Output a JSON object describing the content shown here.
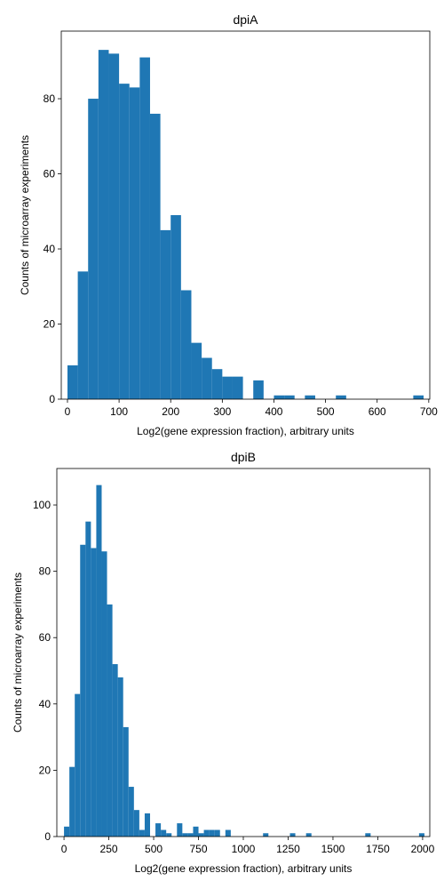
{
  "chart_data": [
    {
      "type": "bar",
      "title": "dpiA",
      "xlabel": "Log2(gene expression fraction), arbitrary units",
      "ylabel": "Counts of microarray experiments",
      "xlim": [
        -12,
        702
      ],
      "ylim": [
        0,
        98
      ],
      "xticks": [
        0,
        100,
        200,
        300,
        400,
        500,
        600,
        700
      ],
      "yticks": [
        0,
        20,
        40,
        60,
        80
      ],
      "bar_color": "#1f77b4",
      "grid": false,
      "bins": [
        {
          "x0": 0,
          "x1": 20,
          "count": 9
        },
        {
          "x0": 20,
          "x1": 40,
          "count": 34
        },
        {
          "x0": 40,
          "x1": 60,
          "count": 80
        },
        {
          "x0": 60,
          "x1": 80,
          "count": 93
        },
        {
          "x0": 80,
          "x1": 100,
          "count": 92
        },
        {
          "x0": 100,
          "x1": 120,
          "count": 84
        },
        {
          "x0": 120,
          "x1": 140,
          "count": 83
        },
        {
          "x0": 140,
          "x1": 160,
          "count": 91
        },
        {
          "x0": 160,
          "x1": 180,
          "count": 76
        },
        {
          "x0": 180,
          "x1": 200,
          "count": 45
        },
        {
          "x0": 200,
          "x1": 220,
          "count": 49
        },
        {
          "x0": 220,
          "x1": 240,
          "count": 29
        },
        {
          "x0": 240,
          "x1": 260,
          "count": 15
        },
        {
          "x0": 260,
          "x1": 280,
          "count": 11
        },
        {
          "x0": 280,
          "x1": 300,
          "count": 8
        },
        {
          "x0": 300,
          "x1": 320,
          "count": 6
        },
        {
          "x0": 320,
          "x1": 340,
          "count": 6
        },
        {
          "x0": 360,
          "x1": 380,
          "count": 5
        },
        {
          "x0": 400,
          "x1": 420,
          "count": 1
        },
        {
          "x0": 420,
          "x1": 440,
          "count": 1
        },
        {
          "x0": 460,
          "x1": 480,
          "count": 1
        },
        {
          "x0": 520,
          "x1": 540,
          "count": 1
        },
        {
          "x0": 670,
          "x1": 690,
          "count": 1
        }
      ]
    },
    {
      "type": "bar",
      "title": "dpiB",
      "xlabel": "Log2(gene expression fraction), arbitrary units",
      "ylabel": "Counts of microarray experiments",
      "xlim": [
        -40,
        2040
      ],
      "ylim": [
        0,
        111
      ],
      "xticks": [
        0,
        250,
        500,
        750,
        1000,
        1250,
        1500,
        1750,
        2000
      ],
      "yticks": [
        0,
        20,
        40,
        60,
        80,
        100
      ],
      "bar_color": "#1f77b4",
      "grid": false,
      "bins": [
        {
          "x0": 0,
          "x1": 30,
          "count": 3
        },
        {
          "x0": 30,
          "x1": 60,
          "count": 21
        },
        {
          "x0": 60,
          "x1": 90,
          "count": 43
        },
        {
          "x0": 90,
          "x1": 120,
          "count": 88
        },
        {
          "x0": 120,
          "x1": 150,
          "count": 95
        },
        {
          "x0": 150,
          "x1": 180,
          "count": 87
        },
        {
          "x0": 180,
          "x1": 210,
          "count": 106
        },
        {
          "x0": 210,
          "x1": 240,
          "count": 86
        },
        {
          "x0": 240,
          "x1": 270,
          "count": 70
        },
        {
          "x0": 270,
          "x1": 300,
          "count": 52
        },
        {
          "x0": 300,
          "x1": 330,
          "count": 48
        },
        {
          "x0": 330,
          "x1": 360,
          "count": 33
        },
        {
          "x0": 360,
          "x1": 390,
          "count": 15
        },
        {
          "x0": 390,
          "x1": 420,
          "count": 8
        },
        {
          "x0": 420,
          "x1": 450,
          "count": 2
        },
        {
          "x0": 450,
          "x1": 480,
          "count": 7
        },
        {
          "x0": 510,
          "x1": 540,
          "count": 4
        },
        {
          "x0": 540,
          "x1": 570,
          "count": 2
        },
        {
          "x0": 570,
          "x1": 600,
          "count": 1
        },
        {
          "x0": 630,
          "x1": 660,
          "count": 4
        },
        {
          "x0": 660,
          "x1": 690,
          "count": 1
        },
        {
          "x0": 690,
          "x1": 720,
          "count": 1
        },
        {
          "x0": 720,
          "x1": 750,
          "count": 3
        },
        {
          "x0": 750,
          "x1": 780,
          "count": 1
        },
        {
          "x0": 780,
          "x1": 810,
          "count": 2
        },
        {
          "x0": 810,
          "x1": 840,
          "count": 2
        },
        {
          "x0": 840,
          "x1": 870,
          "count": 2
        },
        {
          "x0": 900,
          "x1": 930,
          "count": 2
        },
        {
          "x0": 1110,
          "x1": 1140,
          "count": 1
        },
        {
          "x0": 1260,
          "x1": 1290,
          "count": 1
        },
        {
          "x0": 1350,
          "x1": 1380,
          "count": 1
        },
        {
          "x0": 1680,
          "x1": 1710,
          "count": 1
        },
        {
          "x0": 1980,
          "x1": 2010,
          "count": 1
        }
      ]
    }
  ]
}
